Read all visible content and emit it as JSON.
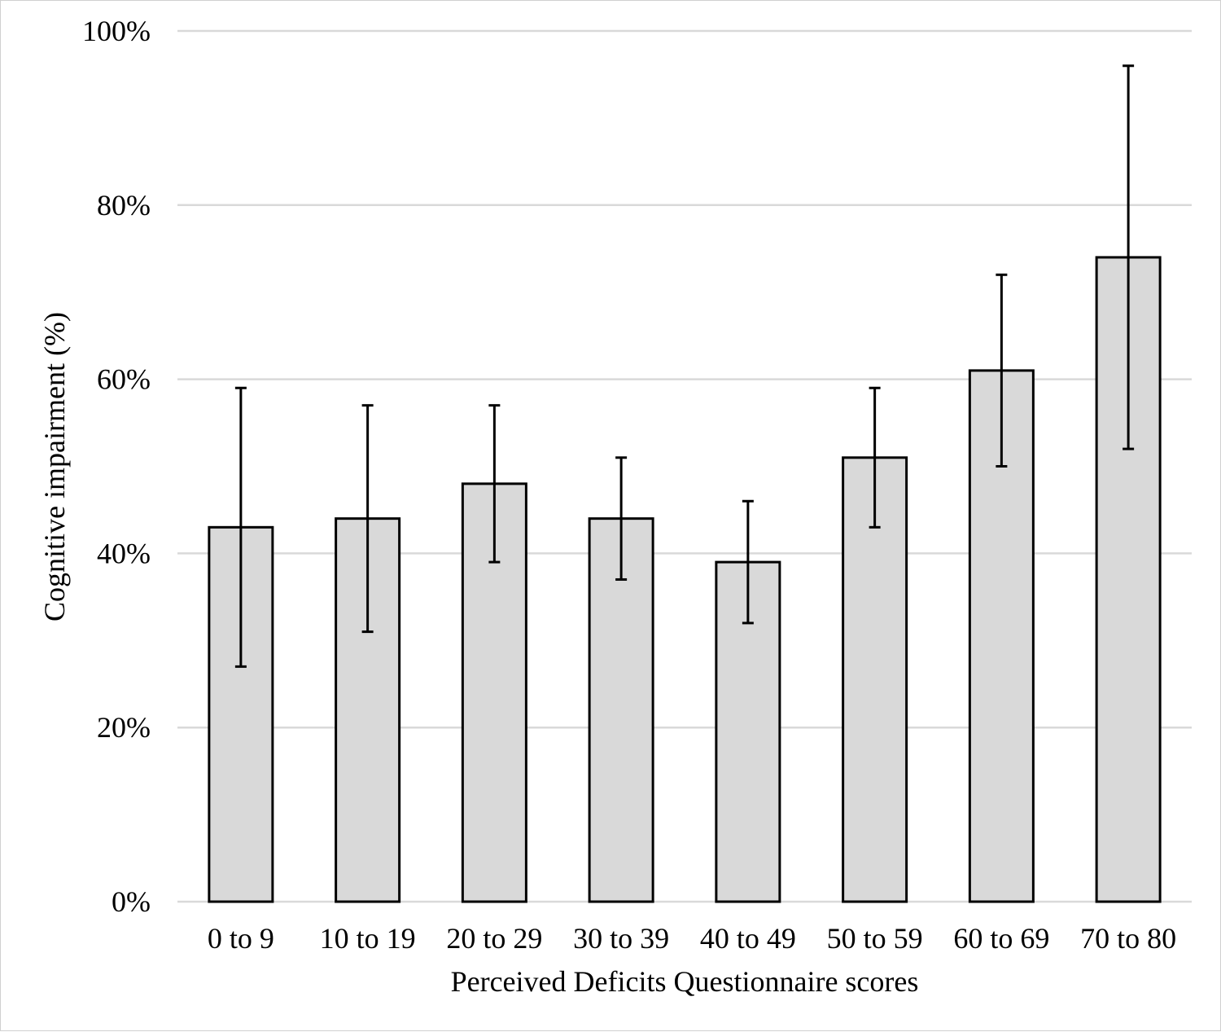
{
  "chart_data": {
    "type": "bar",
    "xlabel": "Perceived Deficits Questionnaire scores",
    "ylabel": "Cognitive impairment (%)",
    "categories": [
      "0 to 9",
      "10 to 19",
      "20 to 29",
      "30 to 39",
      "40 to 49",
      "50 to 59",
      "60 to 69",
      "70 to 80"
    ],
    "values": [
      43,
      44,
      48,
      44,
      39,
      51,
      61,
      74
    ],
    "error_low": [
      27,
      31,
      39,
      37,
      32,
      43,
      50,
      52
    ],
    "error_high": [
      59,
      57,
      57,
      51,
      46,
      59,
      72,
      96
    ],
    "ylim": [
      0,
      100
    ],
    "yticks": [
      0,
      20,
      40,
      60,
      80,
      100
    ],
    "ytick_labels": [
      "0%",
      "20%",
      "40%",
      "60%",
      "80%",
      "100%"
    ],
    "grid": true,
    "legend": "none",
    "bar_color": "#d9d9d9",
    "edge_color": "#000000"
  }
}
